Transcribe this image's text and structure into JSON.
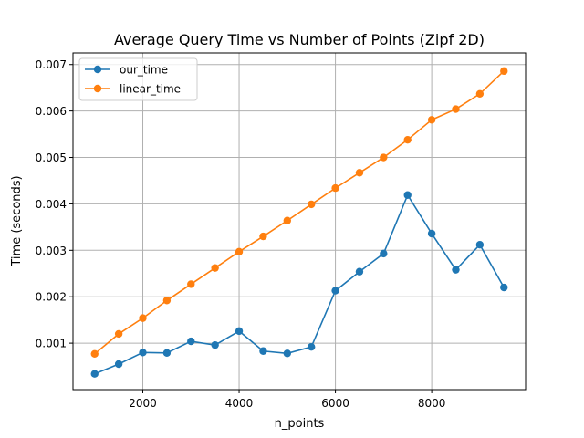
{
  "chart_data": {
    "type": "line",
    "title": "Average Query Time vs Number of Points (Zipf 2D)",
    "xlabel": "n_points",
    "ylabel": "Time (seconds)",
    "xlim": [
      550,
      9950
    ],
    "ylim": [
      0.0,
      0.00725
    ],
    "xticks": [
      2000,
      4000,
      6000,
      8000
    ],
    "xtick_labels": [
      "2000",
      "4000",
      "6000",
      "8000"
    ],
    "yticks": [
      0.001,
      0.002,
      0.003,
      0.004,
      0.005,
      0.006,
      0.007
    ],
    "ytick_labels": [
      "0.001",
      "0.002",
      "0.003",
      "0.004",
      "0.005",
      "0.006",
      "0.007"
    ],
    "grid": true,
    "legend_position": "top-left",
    "x": [
      1000,
      1500,
      2000,
      2500,
      3000,
      3500,
      4000,
      4500,
      5000,
      5500,
      6000,
      6500,
      7000,
      7500,
      8000,
      8500,
      9000,
      9500
    ],
    "series": [
      {
        "name": "our_time",
        "color": "#1f77b4",
        "values": [
          0.00034,
          0.00055,
          0.0008,
          0.00079,
          0.00104,
          0.00096,
          0.00126,
          0.00083,
          0.00078,
          0.00092,
          0.00213,
          0.00254,
          0.00293,
          0.00419,
          0.00336,
          0.00258,
          0.00312,
          0.0022
        ]
      },
      {
        "name": "linear_time",
        "color": "#ff7f0e",
        "values": [
          0.00077,
          0.0012,
          0.00154,
          0.00192,
          0.00227,
          0.00262,
          0.00297,
          0.0033,
          0.00364,
          0.00399,
          0.00434,
          0.00467,
          0.005,
          0.00538,
          0.00581,
          0.00604,
          0.00637,
          0.00686
        ]
      }
    ]
  }
}
